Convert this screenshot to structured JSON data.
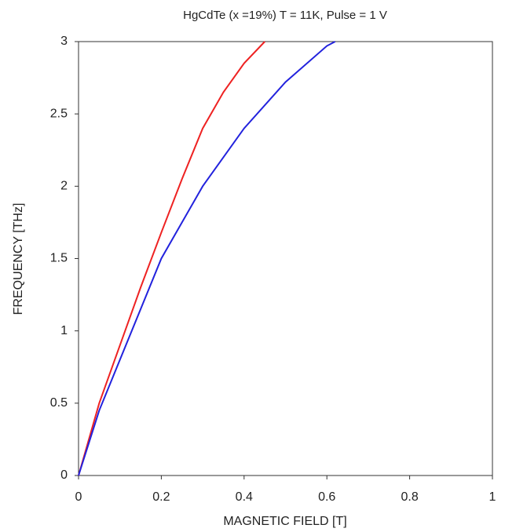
{
  "chart_data": {
    "type": "line",
    "title": "HgCdTe (x =19%) T = 11K, Pulse = 1 V",
    "x_label": "MAGNETIC FIELD [T]",
    "y_label": "FREQUENCY [THz]",
    "xlim": [
      0,
      1
    ],
    "ylim": [
      0,
      3
    ],
    "xticks": [
      0,
      0.2,
      0.4,
      0.6,
      0.8,
      1
    ],
    "yticks": [
      0,
      0.5,
      1,
      1.5,
      2,
      2.5,
      3
    ],
    "series": [
      {
        "color": "#ee2222",
        "x": [
          0,
          0.05,
          0.1,
          0.15,
          0.2,
          0.25,
          0.3,
          0.35,
          0.4,
          0.45
        ],
        "values": [
          0,
          0.5,
          0.9,
          1.3,
          1.68,
          2.05,
          2.4,
          2.65,
          2.85,
          3.0
        ]
      },
      {
        "color": "#2222dd",
        "x": [
          0,
          0.05,
          0.1,
          0.15,
          0.2,
          0.25,
          0.3,
          0.4,
          0.5,
          0.6,
          0.62
        ],
        "values": [
          0,
          0.45,
          0.8,
          1.15,
          1.5,
          1.75,
          2.0,
          2.4,
          2.72,
          2.97,
          3.0
        ]
      }
    ]
  }
}
